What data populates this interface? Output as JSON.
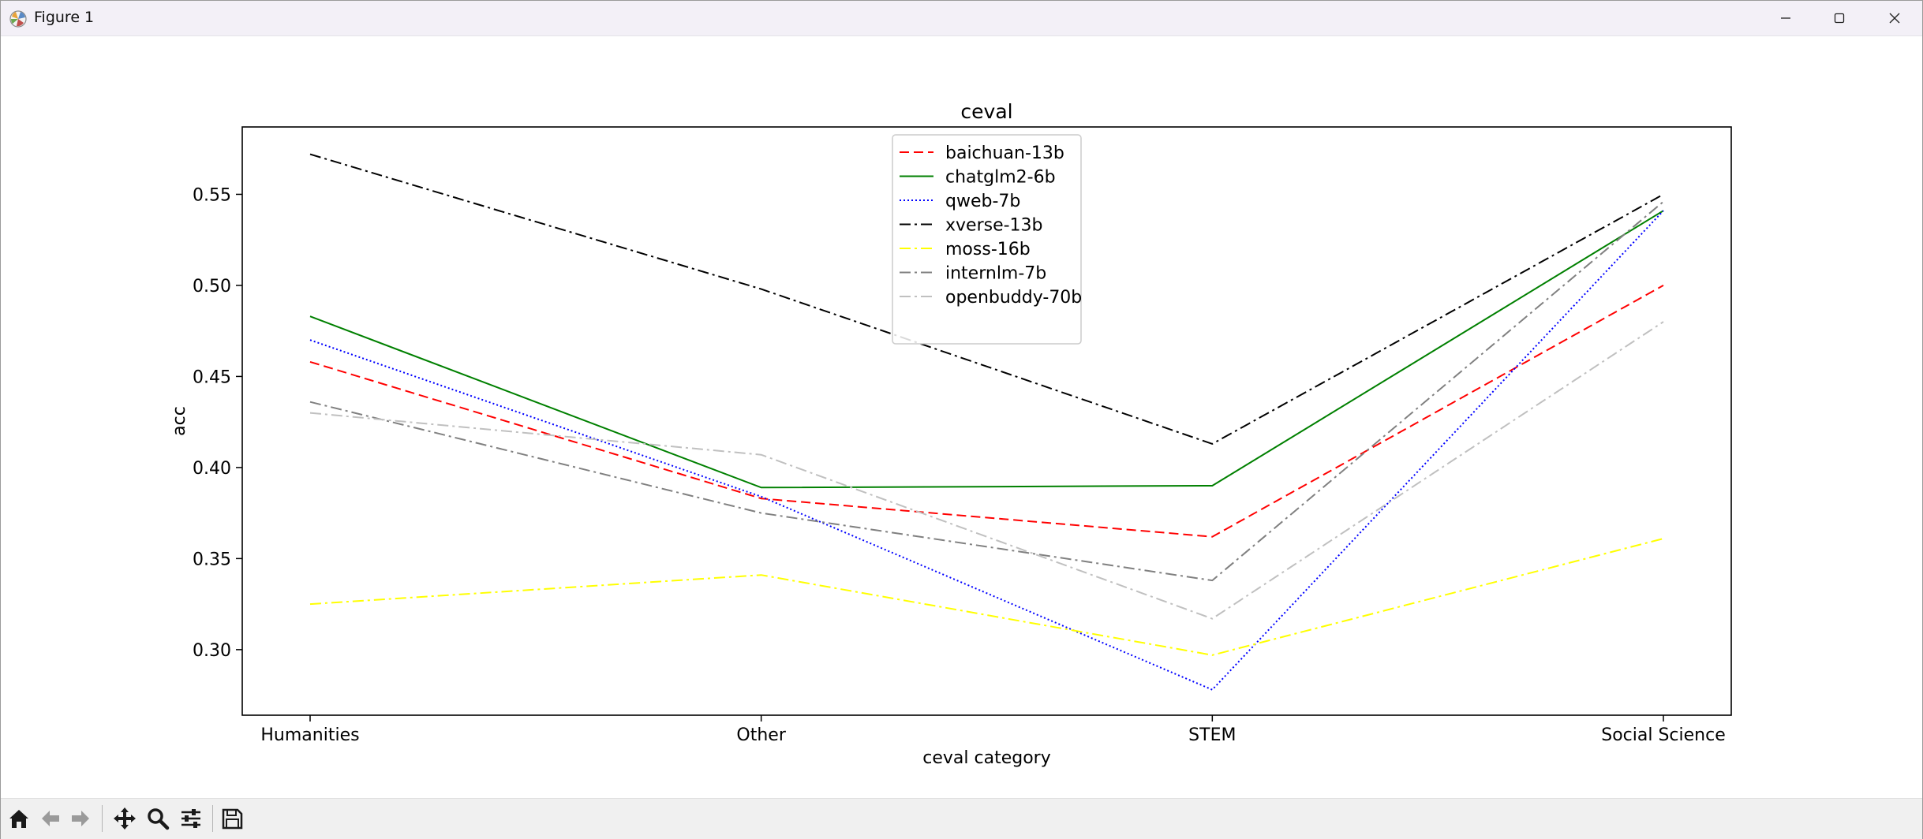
{
  "window": {
    "title": "Figure 1"
  },
  "toolbar": {
    "buttons": [
      "home-icon",
      "back-arrow-icon",
      "forward-arrow-icon",
      "pan-icon",
      "zoom-icon",
      "configure-subplots-icon",
      "save-icon"
    ]
  },
  "chart_data": {
    "type": "line",
    "title": "ceval",
    "xlabel": "ceval category",
    "ylabel": "acc",
    "categories": [
      "Humanities",
      "Other",
      "STEM",
      "Social Science"
    ],
    "ylim": [
      0.264,
      0.587
    ],
    "yticks": [
      0.3,
      0.35,
      0.4,
      0.45,
      0.5,
      0.55
    ],
    "yticklabels": [
      "0.30",
      "0.35",
      "0.40",
      "0.45",
      "0.50",
      "0.55"
    ],
    "grid": false,
    "legend_position": "upper center",
    "series": [
      {
        "name": "baichuan-13b",
        "values": [
          0.458,
          0.383,
          0.362,
          0.5
        ],
        "color": "#ff0000",
        "dash": "12 6"
      },
      {
        "name": "chatglm2-6b",
        "values": [
          0.483,
          0.389,
          0.39,
          0.541
        ],
        "color": "#008000",
        "dash": ""
      },
      {
        "name": "qweb-7b",
        "values": [
          0.47,
          0.384,
          0.278,
          0.541
        ],
        "color": "#0000ff",
        "dash": "2 3"
      },
      {
        "name": "xverse-13b",
        "values": [
          0.572,
          0.498,
          0.413,
          0.55
        ],
        "color": "#000000",
        "dash": "14 5 3 5"
      },
      {
        "name": "moss-16b",
        "values": [
          0.325,
          0.341,
          0.297,
          0.361
        ],
        "color": "#ffff00",
        "dash": "14 5 3 5"
      },
      {
        "name": "internlm-7b",
        "values": [
          0.436,
          0.375,
          0.338,
          0.546
        ],
        "color": "#808080",
        "dash": "14 5 3 5"
      },
      {
        "name": "openbuddy-70b",
        "values": [
          0.43,
          0.407,
          0.317,
          0.48
        ],
        "color": "#c0c0c0",
        "dash": "14 5 3 5"
      }
    ]
  }
}
